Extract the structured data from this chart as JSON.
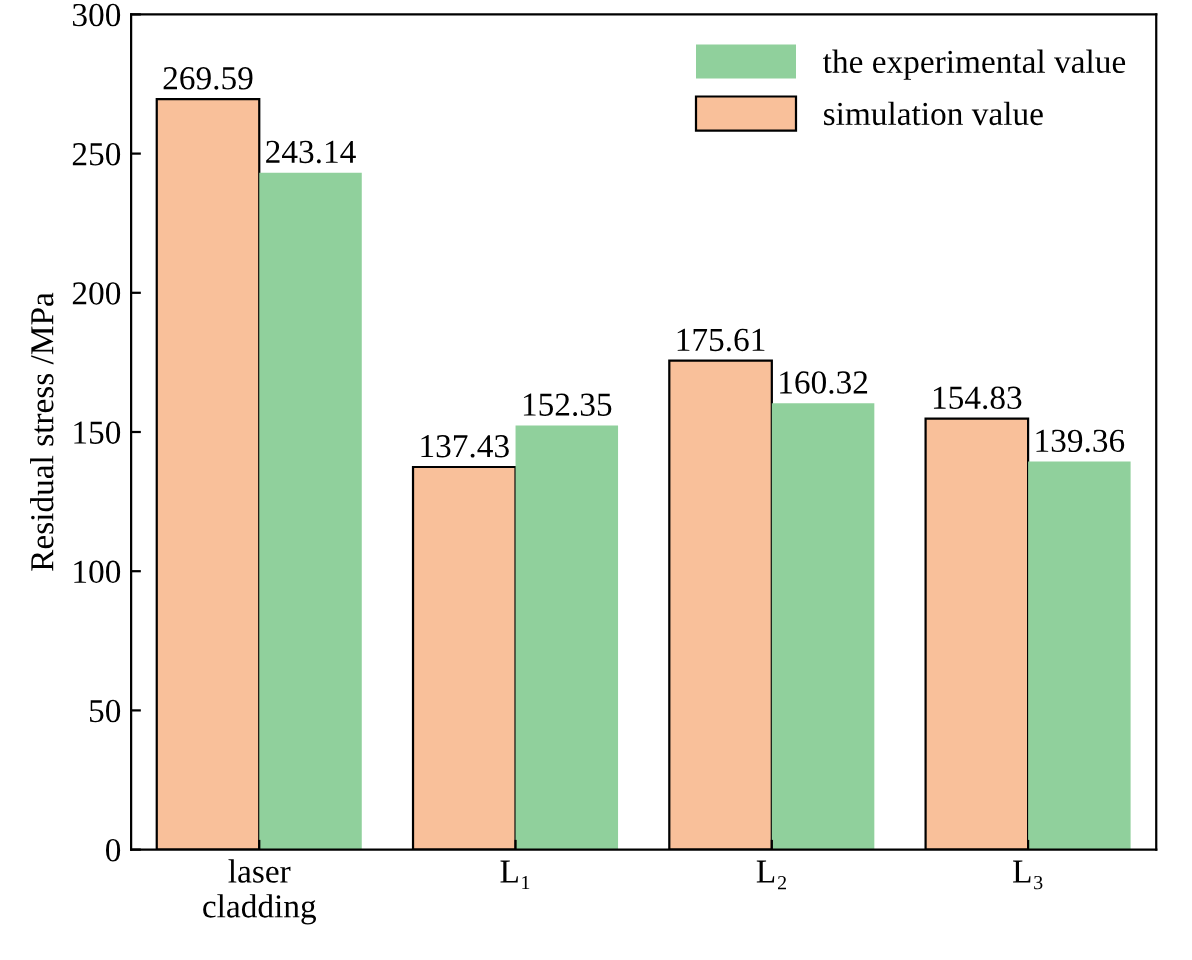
{
  "chart_data": {
    "type": "bar",
    "ylabel": "Residual stress /MPa",
    "categories": [
      "laser\ncladding",
      "L₁",
      "L₂",
      "L₃"
    ],
    "series": [
      {
        "name": "simulation value",
        "color": "#f9c09a",
        "values": [
          269.59,
          137.43,
          175.61,
          154.83
        ]
      },
      {
        "name": "the experimental value",
        "color": "#90d09c",
        "values": [
          243.14,
          152.35,
          160.32,
          139.36
        ]
      }
    ],
    "ylim": [
      0,
      300
    ],
    "yticks": [
      0,
      50,
      100,
      150,
      200,
      250,
      300
    ],
    "data_labels": true,
    "legend": "top right",
    "grid": false
  }
}
